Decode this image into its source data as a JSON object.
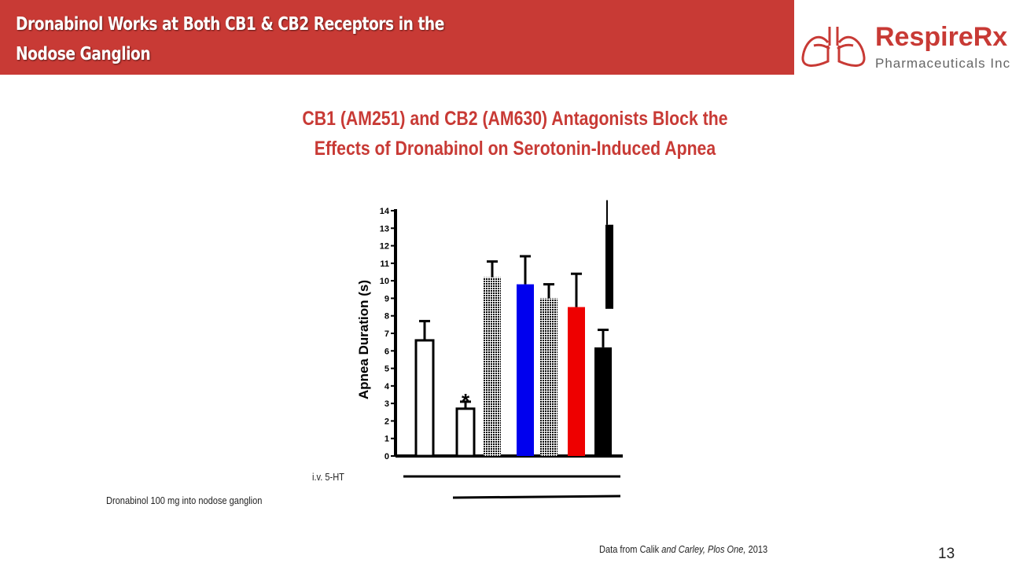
{
  "header": {
    "title": "Dronabinol Works at Both CB1 & CB2 Receptors in the Nodose Ganglion"
  },
  "logo": {
    "name": "RespireRx",
    "sub": "Pharmaceuticals Inc"
  },
  "slide": {
    "subtitle_line1": "CB1 (AM251) and CB2 (AM630) Antagonists Block the",
    "subtitle_line2": "Effects of Dronabinol on Serotonin-Induced Apnea",
    "treatment1": "i.v. 5-HT",
    "treatment2": "Dronabinol 100 mg into nodose ganglion",
    "citation_prefix": "Data from Calik ",
    "citation_italic": "and Carley, Plos One,",
    "citation_suffix": " 2013",
    "page_number": "13"
  },
  "chart_data": {
    "type": "bar",
    "ylabel": "Apnea Duration (s)",
    "ylim": [
      0,
      14
    ],
    "yticks": [
      "0",
      "1",
      "2",
      "3",
      "4",
      "5",
      "6",
      "7",
      "8",
      "9",
      "10",
      "11",
      "12",
      "13",
      "14"
    ],
    "annotation": "*",
    "bars": [
      {
        "value": 6.6,
        "error": 1.1,
        "fill": "#ffffff",
        "pattern": false
      },
      {
        "value": 2.7,
        "error": 0.4,
        "fill": "#ffffff",
        "pattern": false,
        "significant": true
      },
      {
        "value": 10.2,
        "error": 0.9,
        "fill": "#8080ee",
        "pattern": true
      },
      {
        "value": 9.8,
        "error": 1.6,
        "fill": "#0000ee",
        "pattern": false
      },
      {
        "value": 9.0,
        "error": 0.8,
        "fill": "#ee9090",
        "pattern": true
      },
      {
        "value": 8.5,
        "error": 1.9,
        "fill": "#ee0000",
        "pattern": false
      },
      {
        "value": 6.2,
        "error": 1.0,
        "fill": "#000000",
        "pattern": false
      }
    ]
  }
}
